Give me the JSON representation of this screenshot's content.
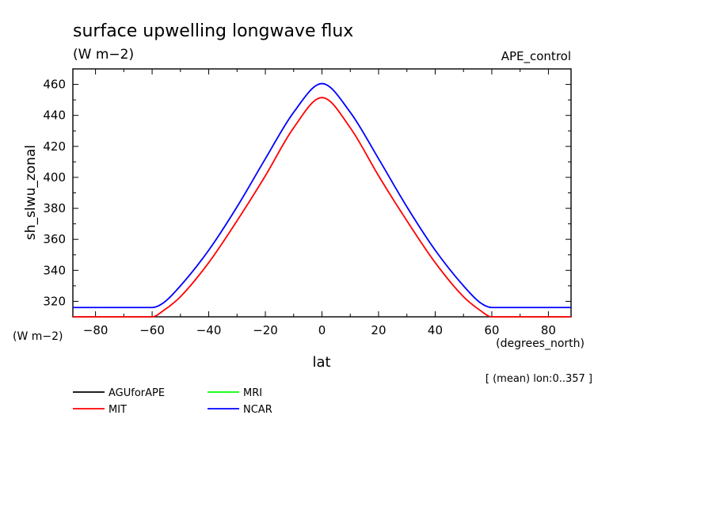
{
  "chart_data": {
    "type": "line",
    "title": "surface upwelling longwave flux",
    "units_label": "(W m−2)",
    "experiment": "APE_control",
    "ylabel": "sh_slwu_zonal",
    "yunits": "(W m−2)",
    "xlabel": "lat",
    "xunits": "(degrees_north)",
    "note": "[ (mean) lon:0..357 ]",
    "xlim": [
      -88,
      88
    ],
    "ylim": [
      310,
      470
    ],
    "x_ticks": [
      -80,
      -60,
      -40,
      -20,
      0,
      20,
      40,
      60,
      80
    ],
    "y_ticks": [
      320,
      340,
      360,
      380,
      400,
      420,
      440,
      460
    ],
    "x_tick_labels": [
      "−80",
      "−60",
      "−40",
      "−20",
      "0",
      "20",
      "40",
      "60",
      "80"
    ],
    "y_tick_labels": [
      "320",
      "340",
      "360",
      "380",
      "400",
      "420",
      "440",
      "460"
    ],
    "legend": [
      {
        "name": "AGUforAPE",
        "color": "#000000"
      },
      {
        "name": "MRI",
        "color": "#00ff00"
      },
      {
        "name": "MIT",
        "color": "#ff0000"
      },
      {
        "name": "NCAR",
        "color": "#0000ff"
      }
    ],
    "x": [
      -88,
      -80,
      -70,
      -60,
      -56,
      -50,
      -40,
      -30,
      -20,
      -10,
      0,
      10,
      20,
      30,
      40,
      50,
      56,
      60,
      70,
      80,
      88
    ],
    "series": [
      {
        "name": "MIT",
        "color": "#ff0000",
        "values": [
          310,
          310,
          310,
          310,
          314,
          323,
          345,
          372,
          401,
          432,
          451.5,
          432,
          401,
          372,
          345,
          323,
          314,
          310,
          310,
          310,
          310
        ]
      },
      {
        "name": "NCAR",
        "color": "#0000ff",
        "values": [
          316,
          316,
          316,
          316,
          319,
          330,
          353,
          381,
          412,
          442,
          460.5,
          442,
          412,
          381,
          353,
          330,
          319,
          316,
          316,
          316,
          316
        ]
      }
    ]
  }
}
